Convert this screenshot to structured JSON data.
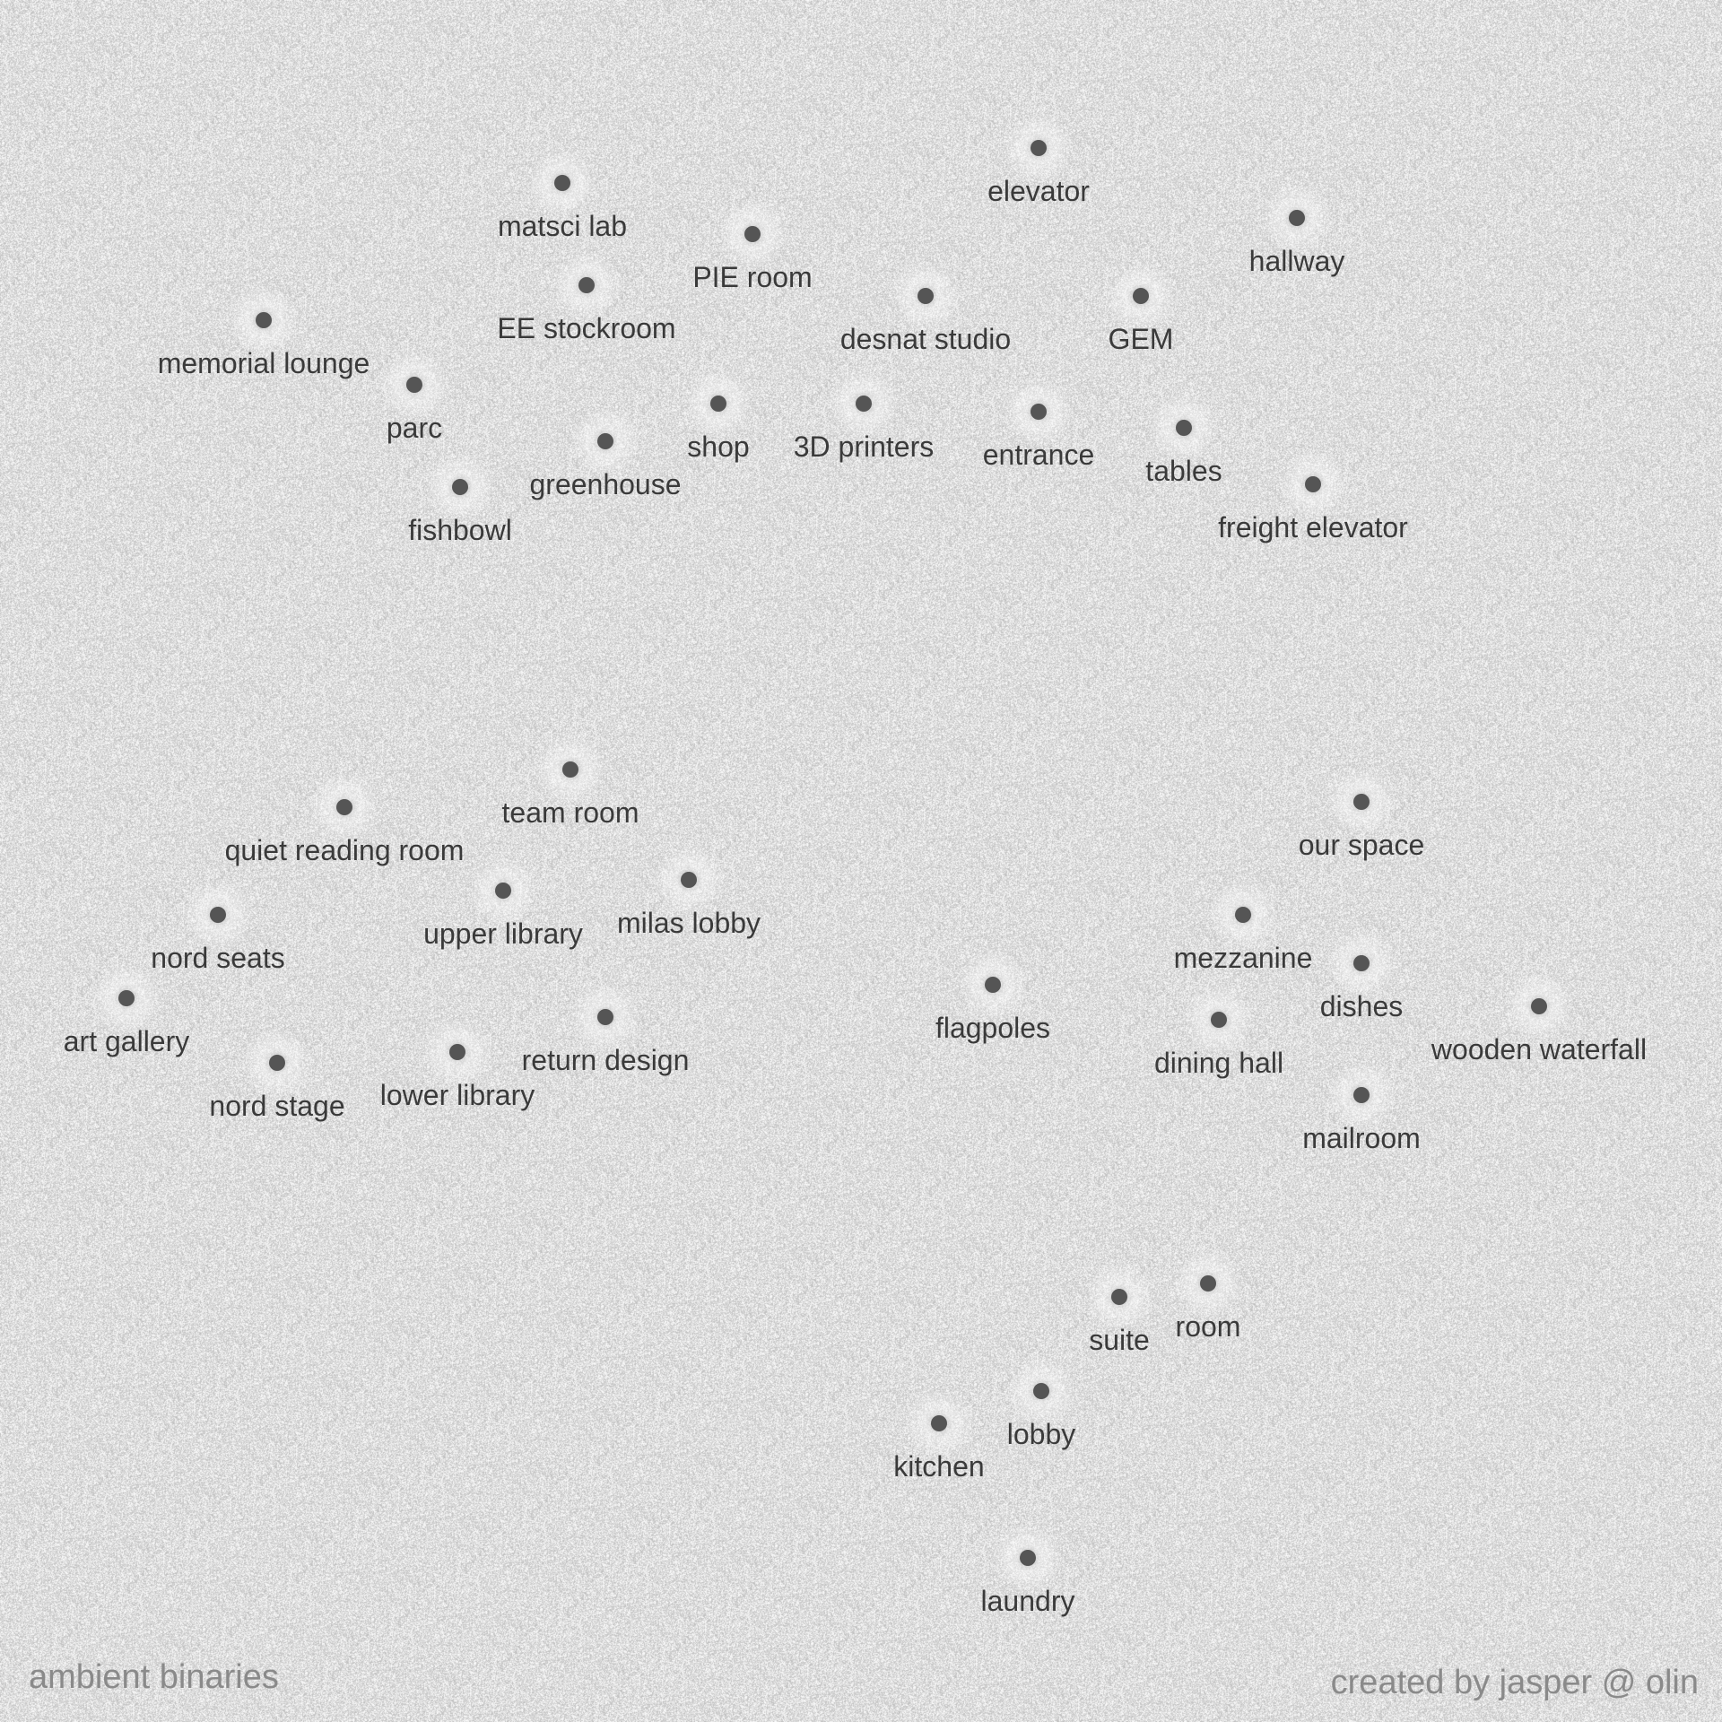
{
  "footer": {
    "left": "ambient binaries",
    "right": "created by jasper @ olin"
  },
  "colors": {
    "background": "#d9d9d9",
    "dot": "#555555",
    "label": "#3a3a3a",
    "footer": "#8a8a8a"
  },
  "locations": [
    {
      "id": "matsci-lab",
      "label": "matsci lab"
    },
    {
      "id": "elevator",
      "label": "elevator"
    },
    {
      "id": "pie-room",
      "label": "PIE room"
    },
    {
      "id": "hallway",
      "label": "hallway"
    },
    {
      "id": "ee-stockroom",
      "label": "EE stockroom"
    },
    {
      "id": "desnat-studio",
      "label": "desnat studio"
    },
    {
      "id": "gem",
      "label": "GEM"
    },
    {
      "id": "memorial-lounge",
      "label": "memorial lounge"
    },
    {
      "id": "parc",
      "label": "parc"
    },
    {
      "id": "shop",
      "label": "shop"
    },
    {
      "id": "3d-printers",
      "label": "3D printers"
    },
    {
      "id": "entrance",
      "label": "entrance"
    },
    {
      "id": "tables",
      "label": "tables"
    },
    {
      "id": "greenhouse",
      "label": "greenhouse"
    },
    {
      "id": "fishbowl",
      "label": "fishbowl"
    },
    {
      "id": "freight-elevator",
      "label": "freight elevator"
    },
    {
      "id": "team-room",
      "label": "team room"
    },
    {
      "id": "quiet-reading-room",
      "label": "quiet reading room"
    },
    {
      "id": "our-space",
      "label": "our space"
    },
    {
      "id": "upper-library",
      "label": "upper library"
    },
    {
      "id": "milas-lobby",
      "label": "milas lobby"
    },
    {
      "id": "nord-seats",
      "label": "nord seats"
    },
    {
      "id": "mezzanine",
      "label": "mezzanine"
    },
    {
      "id": "dishes",
      "label": "dishes"
    },
    {
      "id": "art-gallery",
      "label": "art gallery"
    },
    {
      "id": "flagpoles",
      "label": "flagpoles"
    },
    {
      "id": "wooden-waterfall",
      "label": "wooden waterfall"
    },
    {
      "id": "return-design",
      "label": "return design"
    },
    {
      "id": "dining-hall",
      "label": "dining hall"
    },
    {
      "id": "nord-stage",
      "label": "nord stage"
    },
    {
      "id": "lower-library",
      "label": "lower library"
    },
    {
      "id": "mailroom",
      "label": "mailroom"
    },
    {
      "id": "suite",
      "label": "suite"
    },
    {
      "id": "room",
      "label": "room"
    },
    {
      "id": "lobby",
      "label": "lobby"
    },
    {
      "id": "kitchen",
      "label": "kitchen"
    },
    {
      "id": "laundry",
      "label": "laundry"
    }
  ]
}
